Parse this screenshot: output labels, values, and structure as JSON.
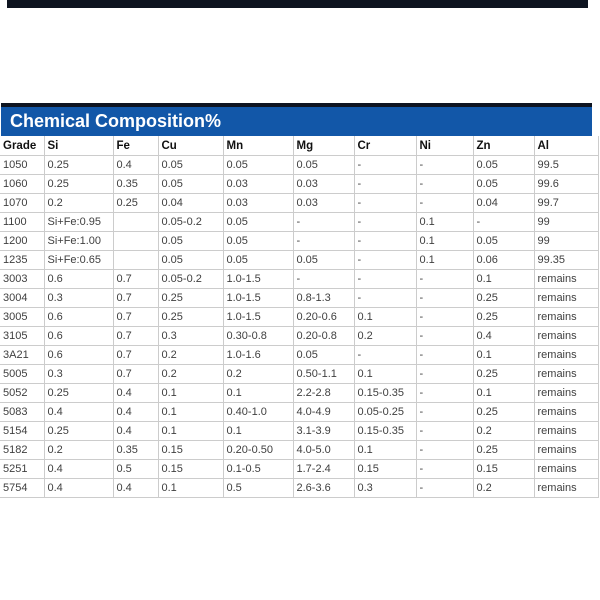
{
  "title_bar": {
    "title": "Chemical Composition%"
  },
  "colors": {
    "accent_blue": "#1257a8",
    "bar_top_border": "#0e1420",
    "top_divider_bar": "#0e1420",
    "grid_line": "#cccccc",
    "header_text": "#111111",
    "body_text": "#3f3f3f",
    "title_text": "#ffffff"
  },
  "table": {
    "columns": [
      "Grade",
      "Si",
      "Fe",
      "Cu",
      "Mn",
      "Mg",
      "Cr",
      "Ni",
      "Zn",
      "Al"
    ],
    "rows": [
      [
        "1050",
        "0.25",
        "0.4",
        "0.05",
        "0.05",
        "0.05",
        "-",
        "-",
        "0.05",
        "99.5"
      ],
      [
        "1060",
        "0.25",
        "0.35",
        "0.05",
        "0.03",
        "0.03",
        "-",
        "-",
        "0.05",
        "99.6"
      ],
      [
        "1070",
        "0.2",
        "0.25",
        "0.04",
        "0.03",
        "0.03",
        "-",
        "-",
        "0.04",
        "99.7"
      ],
      [
        "1100",
        "Si+Fe:0.95",
        "",
        "0.05-0.2",
        "0.05",
        "-",
        "-",
        "0.1",
        "-",
        "99"
      ],
      [
        "1200",
        "Si+Fe:1.00",
        "",
        "0.05",
        "0.05",
        "-",
        "-",
        "0.1",
        "0.05",
        "99"
      ],
      [
        "1235",
        "Si+Fe:0.65",
        "",
        "0.05",
        "0.05",
        "0.05",
        "-",
        "0.1",
        "0.06",
        "99.35"
      ],
      [
        "3003",
        "0.6",
        "0.7",
        "0.05-0.2",
        "1.0-1.5",
        "-",
        "-",
        "-",
        "0.1",
        "remains"
      ],
      [
        "3004",
        "0.3",
        "0.7",
        "0.25",
        "1.0-1.5",
        "0.8-1.3",
        "-",
        "-",
        "0.25",
        "remains"
      ],
      [
        "3005",
        "0.6",
        "0.7",
        "0.25",
        "1.0-1.5",
        "0.20-0.6",
        "0.1",
        "-",
        "0.25",
        "remains"
      ],
      [
        "3105",
        "0.6",
        "0.7",
        "0.3",
        "0.30-0.8",
        "0.20-0.8",
        "0.2",
        "-",
        "0.4",
        "remains"
      ],
      [
        "3A21",
        "0.6",
        "0.7",
        "0.2",
        "1.0-1.6",
        "0.05",
        "-",
        "-",
        "0.1",
        "remains"
      ],
      [
        "5005",
        "0.3",
        "0.7",
        "0.2",
        "0.2",
        "0.50-1.1",
        "0.1",
        "-",
        "0.25",
        "remains"
      ],
      [
        "5052",
        "0.25",
        "0.4",
        "0.1",
        "0.1",
        "2.2-2.8",
        "0.15-0.35",
        "-",
        "0.1",
        "remains"
      ],
      [
        "5083",
        "0.4",
        "0.4",
        "0.1",
        "0.40-1.0",
        "4.0-4.9",
        "0.05-0.25",
        "-",
        "0.25",
        "remains"
      ],
      [
        "5154",
        "0.25",
        "0.4",
        "0.1",
        "0.1",
        "3.1-3.9",
        "0.15-0.35",
        "-",
        "0.2",
        "remains"
      ],
      [
        "5182",
        "0.2",
        "0.35",
        "0.15",
        "0.20-0.50",
        "4.0-5.0",
        "0.1",
        "-",
        "0.25",
        "remains"
      ],
      [
        "5251",
        "0.4",
        "0.5",
        "0.15",
        "0.1-0.5",
        "1.7-2.4",
        "0.15",
        "-",
        "0.15",
        "remains"
      ],
      [
        "5754",
        "0.4",
        "0.4",
        "0.1",
        "0.5",
        "2.6-3.6",
        "0.3",
        "-",
        "0.2",
        "remains"
      ]
    ]
  }
}
